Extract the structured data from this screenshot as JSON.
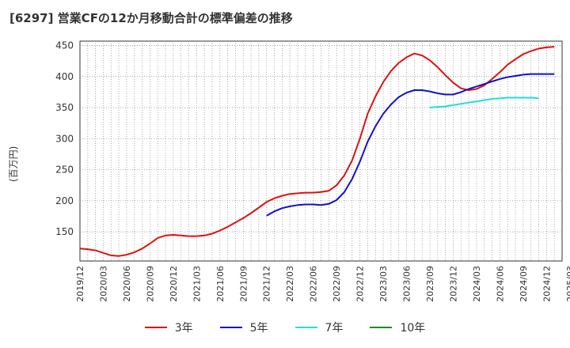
{
  "chart_data": {
    "type": "line",
    "title": "[6297]  営業CFの12か月移動合計の標準偏差の推移",
    "ylabel": "(百万円)",
    "xlabel": "",
    "ylim": [
      103,
      457
    ],
    "yticks": [
      150,
      200,
      250,
      300,
      350,
      400,
      450
    ],
    "x_tick_labels": [
      "2019/12",
      "2020/03",
      "2020/06",
      "2020/09",
      "2020/12",
      "2021/03",
      "2021/06",
      "2021/09",
      "2021/12",
      "2022/03",
      "2022/06",
      "2022/09",
      "2022/12",
      "2023/03",
      "2023/06",
      "2023/09",
      "2023/12",
      "2024/03",
      "2024/06",
      "2024/09",
      "2024/12",
      "2025/03"
    ],
    "grid": true,
    "legend_position": "bottom",
    "series": [
      {
        "name": "3年",
        "color": "#dd1111",
        "start_index": 0,
        "values": [
          123,
          122,
          120,
          116,
          112,
          111,
          113,
          117,
          123,
          131,
          140,
          144,
          145,
          144,
          143,
          143,
          144,
          147,
          152,
          158,
          165,
          172,
          180,
          189,
          198,
          204,
          208,
          211,
          212,
          213,
          213,
          214,
          216,
          225,
          241,
          265,
          300,
          340,
          368,
          391,
          409,
          422,
          431,
          437,
          434,
          426,
          415,
          402,
          390,
          381,
          378,
          380,
          386,
          396,
          407,
          419,
          428,
          436,
          441,
          445,
          447,
          448
        ]
      },
      {
        "name": "5年",
        "color": "#1111cc",
        "start_index": 24,
        "values": [
          176,
          183,
          188,
          191,
          193,
          194,
          194,
          193,
          195,
          201,
          214,
          235,
          263,
          295,
          320,
          340,
          355,
          367,
          374,
          378,
          378,
          376,
          373,
          371,
          371,
          375,
          380,
          384,
          388,
          392,
          396,
          399,
          401,
          403,
          404,
          404,
          404,
          404
        ]
      },
      {
        "name": "7年",
        "color": "#22dddd",
        "start_index": 45,
        "values": [
          350,
          351,
          352,
          354,
          356,
          358,
          360,
          362,
          364,
          365,
          366,
          366,
          366,
          366,
          365
        ]
      },
      {
        "name": "10年",
        "color": "#228822",
        "start_index": 0,
        "values": []
      }
    ]
  }
}
